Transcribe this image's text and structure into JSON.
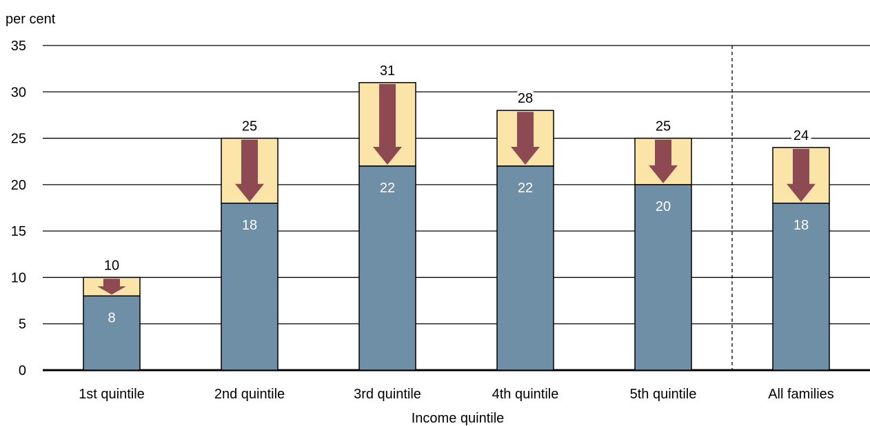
{
  "chart_data": {
    "type": "bar",
    "ylabel": "per cent",
    "xlabel": "Income quintile",
    "ylim": [
      0,
      35
    ],
    "yticks": [
      0,
      5,
      10,
      15,
      20,
      25,
      30,
      35
    ],
    "categories": [
      "1st quintile",
      "2nd quintile",
      "3rd quintile",
      "4th quintile",
      "5th quintile",
      "All families"
    ],
    "series": [
      {
        "values": [
          8,
          18,
          22,
          22,
          20,
          18
        ]
      },
      {
        "values": [
          10,
          25,
          31,
          28,
          25,
          24
        ]
      }
    ],
    "annotations": "Downward arrows show the decline from the upper value to the lower value in each category",
    "grid": true,
    "separator_before": "All families"
  },
  "colors": {
    "lower_bar": "#6f8fa6",
    "upper_bar": "#fbe4a8",
    "arrow": "#8e4a53",
    "grid": "#000000",
    "label_inside": "#ffffff",
    "label_outside": "#000000"
  }
}
